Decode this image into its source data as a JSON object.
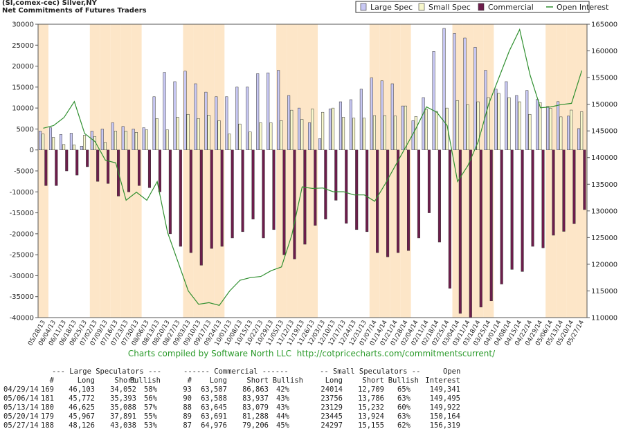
{
  "chart_data": {
    "type": "bar",
    "title": "(SI,comex-cec) Silver,NY",
    "subtitle": "Net Commitments of Futures Traders",
    "footer": "Charts compiled by Software North LLC  http://cotpricecharts.com/commitmentscurrent/",
    "categories": [
      "05/28/13",
      "06/04/13",
      "06/11/13",
      "06/18/13",
      "06/25/13",
      "07/02/13",
      "07/09/13",
      "07/16/13",
      "07/23/13",
      "07/30/13",
      "08/06/13",
      "08/13/13",
      "08/20/13",
      "08/27/13",
      "09/03/13",
      "09/10/13",
      "09/17/13",
      "09/24/13",
      "10/01/13",
      "10/08/13",
      "10/15/13",
      "10/22/13",
      "10/29/13",
      "11/05/13",
      "11/12/13",
      "11/19/13",
      "11/26/13",
      "12/03/13",
      "12/10/13",
      "12/17/13",
      "12/24/13",
      "12/31/13",
      "01/07/14",
      "01/14/14",
      "01/21/14",
      "01/28/14",
      "02/04/14",
      "02/11/14",
      "02/18/14",
      "02/25/14",
      "03/04/14",
      "03/11/14",
      "03/18/14",
      "03/25/14",
      "04/01/14",
      "04/08/14",
      "04/15/14",
      "04/22/14",
      "04/29/14",
      "05/06/14",
      "05/13/14",
      "05/20/14",
      "05/27/14"
    ],
    "series": [
      {
        "name": "Large Spec",
        "color": "#c8c8f4",
        "values": [
          4500,
          5300,
          3700,
          4000,
          900,
          4500,
          5000,
          6500,
          5600,
          5000,
          5300,
          12700,
          18500,
          16300,
          18800,
          15800,
          13800,
          12700,
          12700,
          15000,
          15000,
          18200,
          18400,
          19000,
          13000,
          10000,
          6500,
          2700,
          9800,
          11500,
          12000,
          14500,
          17200,
          16500,
          15800,
          10500,
          7000,
          12500,
          23500,
          29000,
          27800,
          26700,
          24500,
          19000,
          14500,
          16300,
          13000,
          14200,
          12051,
          10379,
          11537,
          8076,
          5088
        ]
      },
      {
        "name": "Small Spec",
        "color": "#f8f8cc",
        "values": [
          3800,
          3000,
          1300,
          1200,
          3500,
          3200,
          1800,
          4500,
          4500,
          4200,
          4800,
          7500,
          4800,
          7800,
          8500,
          7500,
          8300,
          7000,
          3800,
          6200,
          4300,
          6500,
          6500,
          7000,
          9500,
          7300,
          9800,
          9000,
          10000,
          7800,
          7600,
          7600,
          8200,
          8200,
          8100,
          10500,
          8000,
          9700,
          9200,
          10000,
          11800,
          10800,
          11500,
          12500,
          13500,
          12500,
          11500,
          8500,
          11305,
          9970,
          7897,
          9521,
          9142
        ]
      },
      {
        "name": "Commercial",
        "color": "#6e1d4c",
        "values": [
          -8500,
          -8500,
          -5000,
          -6000,
          -4000,
          -7500,
          -8000,
          -11000,
          -10000,
          -8500,
          -9000,
          -10000,
          -20000,
          -23000,
          -24500,
          -27500,
          -23500,
          -23000,
          -21000,
          -19500,
          -16500,
          -21000,
          -19000,
          -25000,
          -26000,
          -22500,
          -18000,
          -16500,
          -12000,
          -17500,
          -19000,
          -19500,
          -24500,
          -25500,
          -24500,
          -24000,
          -21000,
          -15000,
          -22000,
          -33000,
          -39000,
          -40000,
          -37500,
          -36000,
          -32000,
          -28500,
          -29000,
          -23000,
          -23356,
          -20349,
          -19434,
          -17597,
          -14230
        ]
      },
      {
        "name": "Open Interest",
        "color": "#2f8f2f",
        "type": "line",
        "axis": "y2",
        "values": [
          145500,
          146000,
          147500,
          150500,
          144500,
          143000,
          139500,
          139000,
          132000,
          133500,
          132000,
          135500,
          126000,
          120500,
          115000,
          112500,
          112800,
          112300,
          115000,
          117000,
          117500,
          117700,
          118800,
          119500,
          125500,
          134500,
          134200,
          134300,
          133600,
          133600,
          133000,
          133000,
          131800,
          135000,
          138500,
          142000,
          145500,
          149500,
          148500,
          146000,
          135500,
          138500,
          143000,
          150000,
          155000,
          160000,
          164000,
          155500,
          149341,
          149495,
          149922,
          150164,
          156319
        ]
      }
    ],
    "ylim": [
      -40000,
      30000
    ],
    "yticks": [
      -40000,
      -35000,
      -30000,
      -25000,
      -20000,
      -15000,
      -10000,
      -5000,
      0,
      5000,
      10000,
      15000,
      20000,
      25000,
      30000
    ],
    "y2lim": [
      110000,
      165000
    ],
    "y2ticks": [
      110000,
      115000,
      120000,
      125000,
      130000,
      135000,
      140000,
      145000,
      150000,
      155000,
      160000,
      165000
    ],
    "legend": "top-right",
    "band_color": "#fde6c8"
  },
  "table": {
    "group_headers": [
      "--- Large Speculators ---",
      "------ Commercial ------",
      "-- Small Speculators --",
      "Open"
    ],
    "column_headers": [
      "#",
      "Long",
      "Short",
      "Bullish",
      "#",
      "Long",
      "Short",
      "Bullish",
      "Long",
      "Short",
      "Bullish",
      "Interest"
    ],
    "rows": [
      [
        "04/29/14",
        "169",
        "46,103",
        "34,052",
        "58%",
        "93",
        "63,507",
        "86,863",
        "42%",
        "24014",
        "12,709",
        "65%",
        "149,341"
      ],
      [
        "05/06/14",
        "181",
        "45,772",
        "35,393",
        "56%",
        "90",
        "63,588",
        "83,937",
        "43%",
        "23756",
        "13,786",
        "63%",
        "149,495"
      ],
      [
        "05/13/14",
        "180",
        "46,625",
        "35,088",
        "57%",
        "88",
        "63,645",
        "83,079",
        "43%",
        "23129",
        "15,232",
        "60%",
        "149,922"
      ],
      [
        "05/20/14",
        "179",
        "45,967",
        "37,891",
        "55%",
        "89",
        "63,691",
        "81,288",
        "44%",
        "23445",
        "13,924",
        "63%",
        "150,164"
      ],
      [
        "05/27/14",
        "188",
        "48,126",
        "43,038",
        "53%",
        "87",
        "64,976",
        "79,206",
        "45%",
        "24297",
        "15,155",
        "62%",
        "156,319"
      ]
    ]
  }
}
